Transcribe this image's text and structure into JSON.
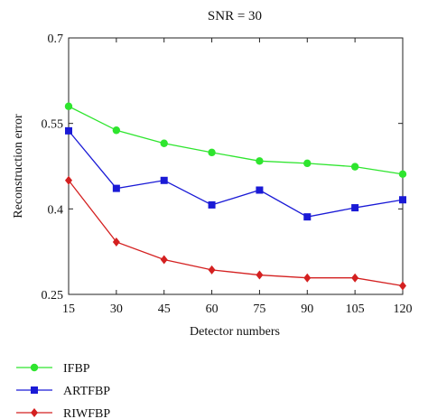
{
  "chart_data": {
    "type": "line",
    "title": "SNR = 30",
    "xlabel": "Detector numbers",
    "ylabel": "Reconstruction error",
    "x": [
      15,
      30,
      45,
      60,
      75,
      90,
      105,
      120
    ],
    "xlim": [
      15,
      120
    ],
    "ylim": [
      0.25,
      0.7
    ],
    "xticks": [
      "15",
      "30",
      "45",
      "60",
      "75",
      "90",
      "105",
      "120"
    ],
    "yticks": [
      "0.25",
      "0.4",
      "0.55",
      "0.7"
    ],
    "grid": false,
    "legend_position": "bottom-left, below the plot",
    "series": [
      {
        "name": "IFBP",
        "color": "#2ee52e",
        "marker": "circle",
        "values": [
          0.58,
          0.538,
          0.515,
          0.499,
          0.484,
          0.48,
          0.474,
          0.461
        ]
      },
      {
        "name": "ARTFBP",
        "color": "#1a1ad6",
        "marker": "square",
        "values": [
          0.537,
          0.436,
          0.45,
          0.407,
          0.433,
          0.386,
          0.402,
          0.416
        ]
      },
      {
        "name": "RIWFBP",
        "color": "#d42020",
        "marker": "diamond",
        "values": [
          0.45,
          0.342,
          0.311,
          0.293,
          0.284,
          0.279,
          0.279,
          0.265
        ]
      }
    ]
  }
}
